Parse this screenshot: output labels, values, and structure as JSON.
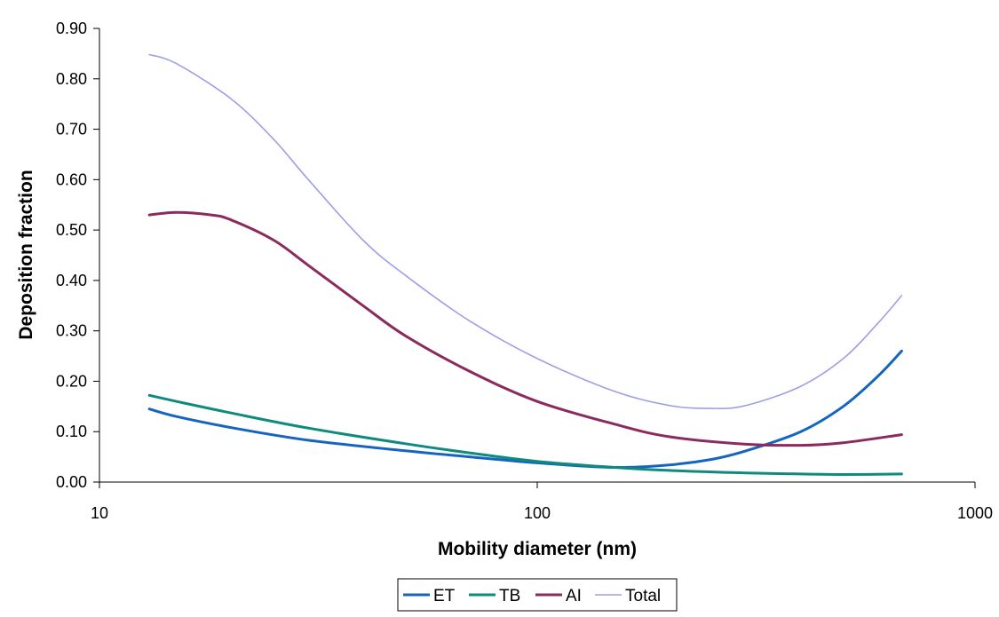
{
  "chart_data": {
    "type": "line",
    "xlabel": "Mobility diameter (nm)",
    "ylabel": "Deposition fraction",
    "x_scale": "log",
    "xlim": [
      10,
      1000
    ],
    "ylim": [
      0,
      0.9
    ],
    "grid": false,
    "legend_position": "bottom",
    "x_ticks": [
      {
        "value": 10,
        "label": "10"
      },
      {
        "value": 100,
        "label": "100"
      },
      {
        "value": 1000,
        "label": "1000"
      }
    ],
    "y_ticks": [
      {
        "value": 0.0,
        "label": "0.00"
      },
      {
        "value": 0.1,
        "label": "0.10"
      },
      {
        "value": 0.2,
        "label": "0.20"
      },
      {
        "value": 0.3,
        "label": "0.30"
      },
      {
        "value": 0.4,
        "label": "0.40"
      },
      {
        "value": 0.5,
        "label": "0.50"
      },
      {
        "value": 0.6,
        "label": "0.60"
      },
      {
        "value": 0.7,
        "label": "0.70"
      },
      {
        "value": 0.8,
        "label": "0.80"
      },
      {
        "value": 0.9,
        "label": "0.90"
      }
    ],
    "series": [
      {
        "name": "ET",
        "color": "#1565C0",
        "x": [
          13,
          15,
          20,
          30,
          50,
          70,
          100,
          150,
          200,
          250,
          300,
          400,
          500,
          600,
          680
        ],
        "y": [
          0.145,
          0.13,
          0.108,
          0.083,
          0.062,
          0.05,
          0.038,
          0.029,
          0.034,
          0.045,
          0.062,
          0.1,
          0.15,
          0.21,
          0.26
        ]
      },
      {
        "name": "TB",
        "color": "#0E8A7E",
        "x": [
          13,
          15,
          20,
          30,
          50,
          70,
          100,
          150,
          200,
          300,
          400,
          500,
          680
        ],
        "y": [
          0.172,
          0.16,
          0.137,
          0.107,
          0.076,
          0.058,
          0.041,
          0.029,
          0.023,
          0.018,
          0.016,
          0.015,
          0.016
        ]
      },
      {
        "name": "AI",
        "color": "#8B2A5E",
        "x": [
          13,
          15,
          18,
          20,
          25,
          30,
          40,
          50,
          70,
          100,
          150,
          200,
          300,
          400,
          500,
          680
        ],
        "y": [
          0.53,
          0.535,
          0.53,
          0.52,
          0.48,
          0.43,
          0.35,
          0.29,
          0.22,
          0.16,
          0.115,
          0.09,
          0.075,
          0.073,
          0.078,
          0.094
        ]
      },
      {
        "name": "Total",
        "color": "#9F9FE8",
        "x": [
          13,
          15,
          20,
          25,
          30,
          40,
          50,
          70,
          100,
          150,
          200,
          250,
          300,
          400,
          500,
          600,
          680
        ],
        "y": [
          0.848,
          0.83,
          0.76,
          0.68,
          0.6,
          0.48,
          0.41,
          0.32,
          0.245,
          0.18,
          0.152,
          0.146,
          0.152,
          0.19,
          0.245,
          0.315,
          0.37
        ]
      }
    ]
  }
}
